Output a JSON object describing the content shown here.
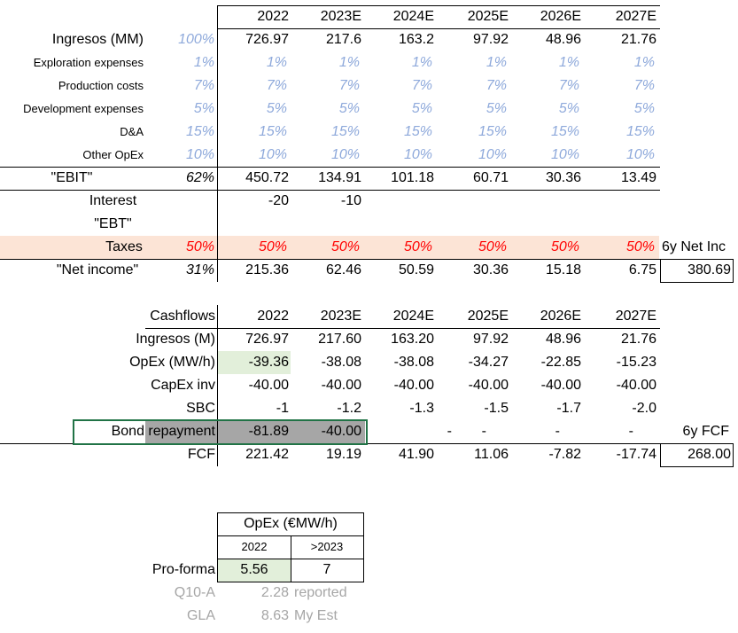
{
  "income": {
    "years": [
      "2022",
      "2023E",
      "2024E",
      "2025E",
      "2026E",
      "2027E"
    ],
    "rows": [
      {
        "label": "Ingresos (MM)",
        "pct": "100%",
        "values": [
          "726.97",
          "217.6",
          "163.2",
          "97.92",
          "48.96",
          "21.76"
        ]
      },
      {
        "label": "Exploration expenses",
        "pct": "1%",
        "values": [
          "1%",
          "1%",
          "1%",
          "1%",
          "1%",
          "1%"
        ]
      },
      {
        "label": "Production costs",
        "pct": "7%",
        "values": [
          "7%",
          "7%",
          "7%",
          "7%",
          "7%",
          "7%"
        ]
      },
      {
        "label": "Development expenses",
        "pct": "5%",
        "values": [
          "5%",
          "5%",
          "5%",
          "5%",
          "5%",
          "5%"
        ]
      },
      {
        "label": "D&A",
        "pct": "15%",
        "values": [
          "15%",
          "15%",
          "15%",
          "15%",
          "15%",
          "15%"
        ]
      },
      {
        "label": "Other OpEx",
        "pct": "10%",
        "values": [
          "10%",
          "10%",
          "10%",
          "10%",
          "10%",
          "10%"
        ]
      },
      {
        "label": "\"EBIT\"",
        "pct": "62%",
        "values": [
          "450.72",
          "134.91",
          "101.18",
          "60.71",
          "30.36",
          "13.49"
        ]
      },
      {
        "label": "Interest",
        "pct": "",
        "values": [
          "-20",
          "-10",
          "",
          "",
          "",
          ""
        ]
      },
      {
        "label": "\"EBT\"",
        "pct": "",
        "values": [
          "",
          "",
          "",
          "",
          "",
          ""
        ]
      },
      {
        "label": "Taxes",
        "pct": "50%",
        "values": [
          "50%",
          "50%",
          "50%",
          "50%",
          "50%",
          "50%"
        ]
      },
      {
        "label": "\"Net income\"",
        "pct": "31%",
        "values": [
          "215.36",
          "62.46",
          "50.59",
          "30.36",
          "15.18",
          "6.75"
        ]
      }
    ],
    "net_inc_label": "6y Net Inc",
    "net_inc_value": "380.69"
  },
  "cashflows": {
    "header": "Cashflows",
    "years": [
      "2022",
      "2023E",
      "2024E",
      "2025E",
      "2026E",
      "2027E"
    ],
    "rows": [
      {
        "label": "Ingresos (M)",
        "values": [
          "726.97",
          "217.60",
          "163.20",
          "97.92",
          "48.96",
          "21.76"
        ]
      },
      {
        "label": "OpEx (MW/h)",
        "values": [
          "-39.36",
          "-38.08",
          "-38.08",
          "-34.27",
          "-22.85",
          "-15.23"
        ]
      },
      {
        "label": "CapEx inv",
        "values": [
          "-40.00",
          "-40.00",
          "-40.00",
          "-40.00",
          "-40.00",
          "-40.00"
        ]
      },
      {
        "label": "SBC",
        "values": [
          "-1",
          "-1.2",
          "-1.3",
          "-1.5",
          "-1.7",
          "-2.0"
        ]
      },
      {
        "label": "Bond repayment",
        "values": [
          "-81.89",
          "-40.00",
          "-",
          "-",
          "-",
          "-"
        ]
      },
      {
        "label": "FCF",
        "values": [
          "221.42",
          "19.19",
          "41.90",
          "11.06",
          "-7.82",
          "-17.74"
        ]
      }
    ],
    "fcf_label": "6y FCF",
    "fcf_value": "268.00"
  },
  "opex": {
    "title": "OpEx (€MW/h)",
    "col1": "2022",
    "col2": ">2023",
    "rows": [
      {
        "label": "Pro-forma",
        "v1": "5.56",
        "v2": "7"
      },
      {
        "label": "Q10-A",
        "v1": "2.28",
        "v2": "reported"
      },
      {
        "label": "GLA",
        "v1": "8.63",
        "v2": "My Est"
      }
    ]
  },
  "colors": {
    "blue_pct": "#8ea9db",
    "taxes_fill": "#fce4d6",
    "red": "#ff0000",
    "green_fill": "#e2efda",
    "gray_fill": "#a6a6a6",
    "selection_border": "#217346"
  }
}
